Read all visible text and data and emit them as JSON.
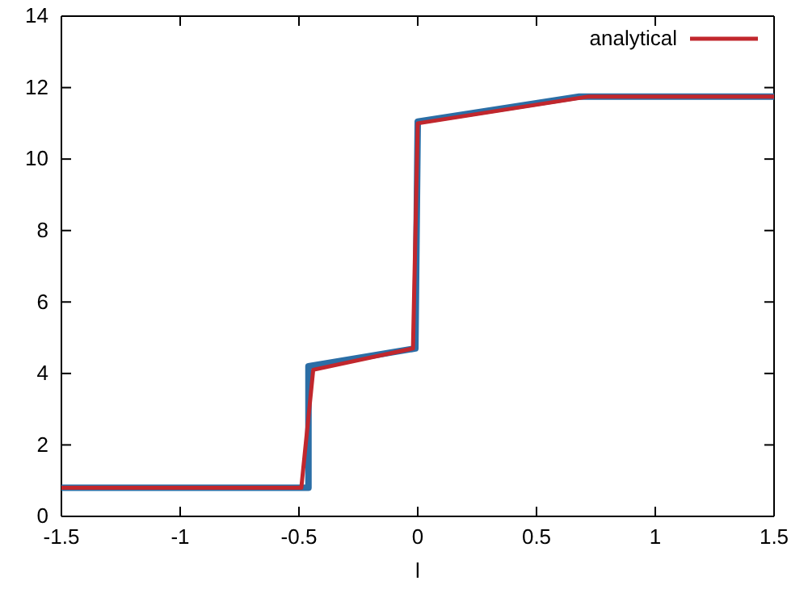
{
  "chart_data": {
    "type": "line",
    "xlabel": "l",
    "xlim": [
      -1.5,
      1.5
    ],
    "xticks": [
      -1.5,
      -1,
      -0.5,
      0,
      0.5,
      1,
      1.5
    ],
    "ylim": [
      0,
      14
    ],
    "yticks": [
      0,
      2,
      4,
      6,
      8,
      10,
      12,
      14
    ],
    "grid": false,
    "legend": "top right",
    "line_style": "solid",
    "marker": "none",
    "series": [
      {
        "color": "#2b6ea6",
        "x": [
          -1.5,
          -0.46,
          -0.46,
          -0.01,
          0,
          0.68,
          1.5
        ],
        "values": [
          0.8,
          0.8,
          4.2,
          4.7,
          11.05,
          11.75,
          11.75
        ]
      },
      {
        "name": "analytical",
        "color": "#c1272d",
        "x": [
          -1.5,
          -0.49,
          -0.44,
          -0.02,
          0,
          0.72,
          1.5
        ],
        "values": [
          0.8,
          0.8,
          4.1,
          4.7,
          11.0,
          11.75,
          11.75
        ]
      }
    ]
  }
}
